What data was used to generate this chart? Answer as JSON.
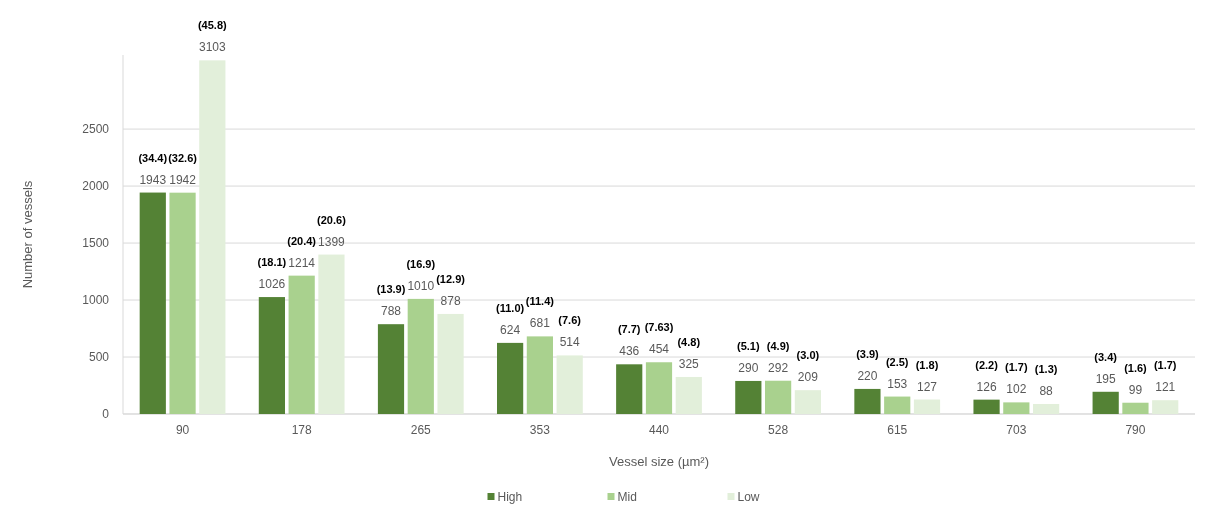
{
  "chart_data": {
    "type": "bar",
    "xlabel": "Vessel size (µm²)",
    "ylabel": "Number of vessels",
    "categories": [
      "90",
      "178",
      "265",
      "353",
      "440",
      "528",
      "615",
      "703",
      "790"
    ],
    "series": [
      {
        "name": "High",
        "color": "#548235",
        "values": [
          1943,
          1026,
          788,
          624,
          436,
          290,
          220,
          126,
          195
        ]
      },
      {
        "name": "Mid",
        "color": "#a9d18e",
        "values": [
          1942,
          1214,
          1010,
          681,
          454,
          292,
          153,
          102,
          99
        ]
      },
      {
        "name": "Low",
        "color": "#e2efda",
        "values": [
          3103,
          1399,
          878,
          514,
          325,
          209,
          127,
          88,
          121
        ]
      }
    ],
    "annotations": [
      "(34.4)",
      "(18.1)",
      "(13.9)",
      "(11.0)",
      "(7.7)",
      "(5.1)",
      "(3.9)",
      "(2.2)",
      "(3.4)",
      "(32.6)",
      "(20.4)",
      "(16.9)",
      "(11.4)",
      "(7.63)",
      "(4.9)",
      "(2.5)",
      "(1.7)",
      "(1.6)",
      "(45.8)",
      "(20.6)",
      "(12.9)",
      "(7.6)",
      "(4.8)",
      "(3.0)",
      "(1.8)",
      "(1.3)",
      "(1.7)"
    ],
    "ylim": [
      0,
      3150
    ],
    "yticks": [
      0,
      500,
      1000,
      1500,
      2000,
      2500
    ],
    "grid": "y",
    "legend": "bottom",
    "data_labels": true
  }
}
